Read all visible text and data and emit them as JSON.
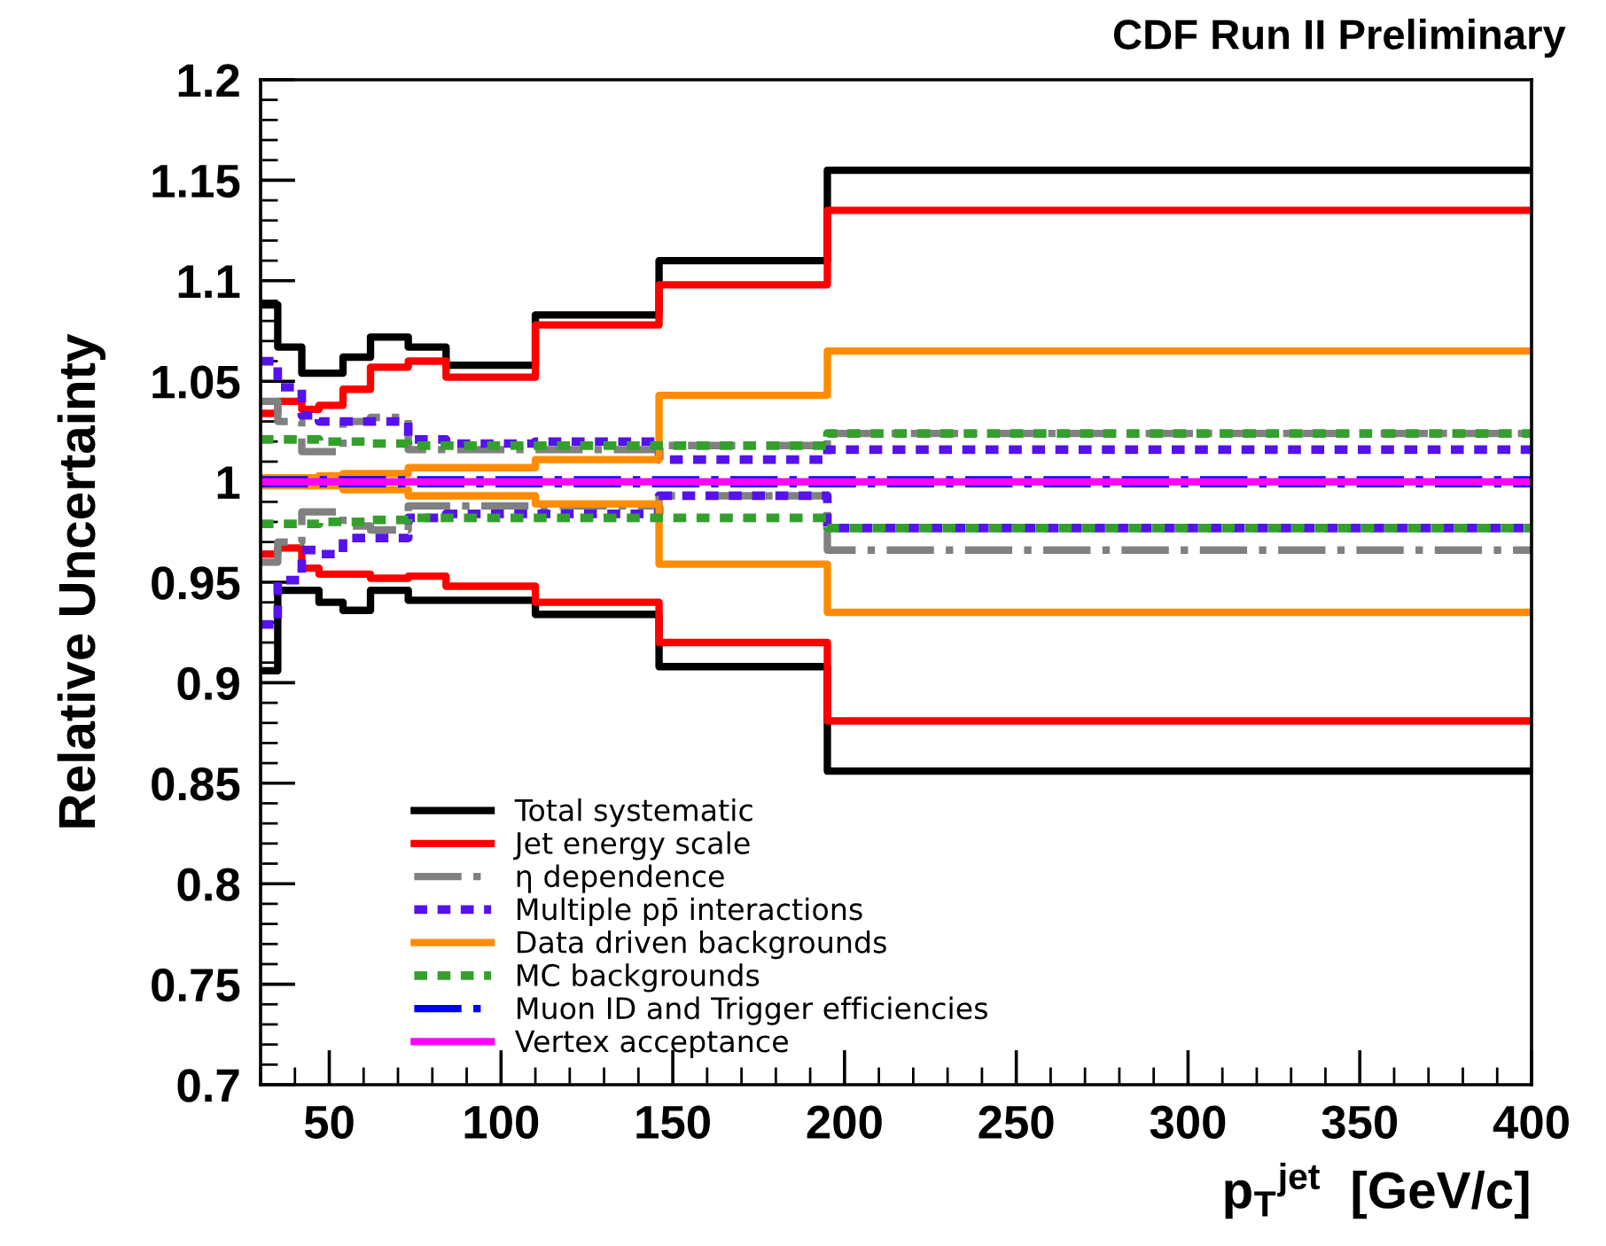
{
  "chart_data": {
    "type": "step",
    "title": "CDF Run II Preliminary",
    "xlabel": "p$_{T}$$^{jet}$  [GeV/c]",
    "ylabel": "Relative Uncertainty",
    "x": [
      30,
      35,
      42,
      47,
      54,
      62,
      73,
      84,
      110,
      146,
      195,
      400
    ],
    "series": [
      {
        "name": "Total systematic",
        "color": "#000000",
        "line_style": "solid",
        "values": [
          1.088,
          1.067,
          1.054,
          1.054,
          1.062,
          1.072,
          1.067,
          1.058,
          1.083,
          1.11,
          1.155,
          1.155
        ]
      },
      {
        "color": "#000000",
        "line_style": "solid",
        "values": [
          0.906,
          0.946,
          0.946,
          0.94,
          0.936,
          0.946,
          0.941,
          0.941,
          0.934,
          0.908,
          0.856,
          0.856
        ]
      },
      {
        "name": "Jet energy scale",
        "color": "#ff0000",
        "line_style": "solid",
        "values": [
          1.034,
          1.04,
          1.036,
          1.038,
          1.046,
          1.057,
          1.06,
          1.052,
          1.078,
          1.098,
          1.135,
          1.135
        ]
      },
      {
        "color": "#ff0000",
        "line_style": "solid",
        "values": [
          0.964,
          0.967,
          0.957,
          0.954,
          0.954,
          0.952,
          0.953,
          0.948,
          0.94,
          0.92,
          0.881,
          0.881
        ]
      },
      {
        "name": "η dependence",
        "color": "#808080",
        "line_style": "dashdot",
        "values": [
          1.04,
          1.03,
          1.015,
          1.015,
          1.03,
          1.032,
          1.016,
          1.016,
          1.016,
          1.018,
          1.024,
          1.024
        ]
      },
      {
        "color": "#808080",
        "line_style": "dashdot",
        "values": [
          0.96,
          0.97,
          0.985,
          0.985,
          0.978,
          0.976,
          0.988,
          0.988,
          0.988,
          0.993,
          0.966,
          0.966
        ]
      },
      {
        "name": "Multiple pp̄ interactions",
        "color": "#5511ee",
        "line_style": "dotted",
        "values": [
          1.06,
          1.047,
          1.033,
          1.03,
          1.03,
          1.03,
          1.021,
          1.019,
          1.02,
          1.011,
          1.016,
          1.016
        ]
      },
      {
        "color": "#5511ee",
        "line_style": "dotted",
        "values": [
          0.929,
          0.951,
          0.966,
          0.964,
          0.972,
          0.972,
          0.982,
          0.984,
          0.984,
          0.993,
          0.977,
          0.977
        ]
      },
      {
        "name": "Data driven backgrounds",
        "color": "#ff8c00",
        "line_style": "solid",
        "values": [
          1.002,
          1.002,
          1.002,
          1.003,
          1.004,
          1.004,
          1.007,
          1.007,
          1.011,
          1.043,
          1.065,
          1.065
        ]
      },
      {
        "color": "#ff8c00",
        "line_style": "solid",
        "values": [
          0.998,
          0.998,
          0.998,
          0.998,
          0.996,
          0.996,
          0.993,
          0.993,
          0.989,
          0.959,
          0.935,
          0.935
        ]
      },
      {
        "name": "MC backgrounds",
        "color": "#33a02c",
        "line_style": "dotted",
        "values": [
          1.021,
          1.021,
          1.021,
          1.02,
          1.02,
          1.019,
          1.018,
          1.018,
          1.018,
          1.018,
          1.024,
          1.024
        ]
      },
      {
        "color": "#33a02c",
        "line_style": "dotted",
        "values": [
          0.979,
          0.979,
          0.979,
          0.98,
          0.98,
          0.981,
          0.982,
          0.982,
          0.982,
          0.982,
          0.977,
          0.977
        ]
      },
      {
        "name": "Muon ID and Trigger efficiencies",
        "color": "#0000ff",
        "line_style": "dashdot",
        "values": [
          1.001,
          1.001,
          1.001,
          1.001,
          1.001,
          1.001,
          1.001,
          1.001,
          1.001,
          1.001,
          1.001,
          1.001
        ]
      },
      {
        "color": "#0000ff",
        "line_style": "dashdot",
        "values": [
          0.999,
          0.999,
          0.999,
          0.999,
          0.999,
          0.999,
          0.999,
          0.999,
          0.999,
          0.999,
          0.999,
          0.999
        ]
      },
      {
        "name": "Vertex acceptance",
        "color": "#ff00ff",
        "line_style": "solid",
        "values": [
          1.0,
          1.0,
          1.0,
          1.0,
          1.0,
          1.0,
          1.0,
          1.0,
          1.0,
          1.0,
          1.0,
          1.0
        ]
      }
    ],
    "xlim": [
      30,
      400
    ],
    "xticks": [
      50,
      100,
      150,
      200,
      250,
      300,
      350,
      400
    ],
    "ylim": [
      0.7,
      1.2
    ],
    "yticks": [
      0.7,
      0.75,
      0.8,
      0.85,
      0.9,
      0.95,
      1,
      1.05,
      1.1,
      1.15,
      1.2
    ],
    "grid": false,
    "legend": "bottom left"
  }
}
